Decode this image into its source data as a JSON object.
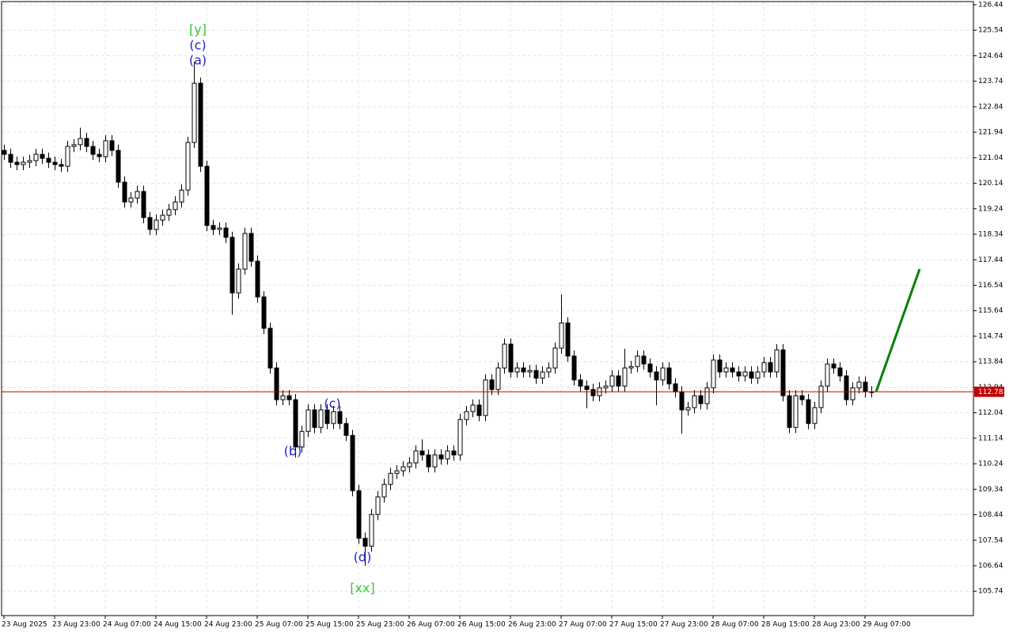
{
  "chart_data": {
    "type": "candlestick",
    "ylim": [
      104.88,
      126.44
    ],
    "yticks": [
      126.44,
      125.54,
      124.64,
      123.74,
      122.84,
      121.94,
      121.04,
      120.14,
      119.24,
      118.34,
      117.44,
      116.54,
      115.64,
      114.74,
      113.84,
      112.94,
      112.04,
      111.14,
      110.24,
      109.34,
      108.44,
      107.54,
      106.64,
      105.74
    ],
    "grid": true,
    "x_labels": [
      "23 Aug 2025",
      "23 Aug 23:00",
      "24 Aug 07:00",
      "24 Aug 15:00",
      "24 Aug 23:00",
      "25 Aug 07:00",
      "25 Aug 15:00",
      "25 Aug 23:00",
      "26 Aug 07:00",
      "26 Aug 15:00",
      "26 Aug 23:00",
      "27 Aug 07:00",
      "27 Aug 15:00",
      "27 Aug 23:00",
      "28 Aug 07:00",
      "28 Aug 15:00",
      "28 Aug 23:00",
      "29 Aug 07:00"
    ],
    "up_color": "#ffffff",
    "down_color": "#000000",
    "open": [
      121.3,
      121.16,
      120.88,
      120.8,
      120.88,
      120.94,
      121.16,
      121.02,
      120.88,
      120.8,
      120.74,
      121.44,
      121.5,
      121.72,
      121.44,
      121.16,
      121.08,
      121.64,
      121.3,
      120.18,
      119.48,
      119.62,
      119.85,
      118.93,
      118.51,
      118.84,
      119.01,
      119.21,
      119.48,
      119.9,
      121.58,
      123.67,
      120.74,
      118.65,
      118.51,
      118.56,
      118.23,
      116.27,
      117.11,
      118.37,
      117.39,
      116.13,
      115.02,
      113.62,
      112.5,
      112.64,
      112.5,
      110.83,
      111.38,
      112.14,
      111.52,
      112.14,
      111.66,
      112.08,
      111.66,
      111.24,
      109.29,
      107.61,
      107.33,
      108.45,
      109.07,
      109.51,
      109.9,
      109.99,
      110.13,
      110.27,
      110.69,
      110.55,
      110.13,
      110.55,
      110.41,
      110.69,
      110.55,
      111.8,
      112.08,
      112.31,
      111.94,
      113.2,
      112.86,
      113.62,
      114.46,
      113.48,
      113.62,
      113.48,
      113.53,
      113.26,
      113.48,
      113.62,
      114.32,
      115.21,
      114.04,
      113.2,
      112.98,
      112.86,
      112.64,
      112.92,
      112.98,
      113.34,
      112.98,
      113.62,
      113.67,
      114.04,
      113.76,
      113.48,
      113.2,
      113.62,
      113.06,
      112.78,
      112.14,
      112.22,
      112.64,
      112.36,
      112.92,
      113.9,
      113.48,
      113.62,
      113.48,
      113.34,
      113.48,
      113.26,
      113.48,
      113.81,
      113.48,
      114.26,
      112.64,
      111.52,
      112.64,
      112.5,
      111.66,
      112.22,
      112.98,
      113.76,
      113.62,
      113.34,
      112.5,
      112.92,
      113.12,
      112.78
    ],
    "high": [
      121.5,
      121.36,
      121.08,
      121.08,
      121.14,
      121.36,
      121.36,
      121.22,
      121.08,
      121.0,
      121.64,
      121.7,
      122.1,
      121.92,
      121.64,
      121.36,
      121.84,
      121.84,
      121.5,
      120.38,
      119.82,
      120.05,
      120.05,
      119.13,
      119.04,
      119.21,
      119.41,
      119.68,
      120.1,
      121.78,
      124.43,
      123.87,
      120.94,
      118.85,
      118.76,
      118.76,
      118.43,
      117.31,
      118.57,
      118.57,
      117.59,
      116.33,
      115.22,
      113.82,
      112.84,
      112.84,
      112.7,
      111.58,
      112.34,
      112.34,
      112.34,
      112.34,
      112.28,
      112.28,
      111.86,
      111.44,
      109.49,
      107.81,
      108.65,
      109.27,
      109.71,
      110.1,
      110.19,
      110.33,
      110.47,
      110.89,
      111.1,
      110.75,
      110.75,
      110.75,
      110.89,
      110.89,
      112.0,
      112.28,
      112.51,
      112.51,
      113.4,
      113.4,
      113.82,
      114.66,
      114.66,
      113.82,
      113.82,
      113.73,
      113.73,
      113.68,
      113.82,
      114.52,
      116.22,
      115.41,
      114.24,
      113.4,
      113.18,
      113.06,
      113.12,
      113.18,
      113.54,
      113.54,
      114.3,
      113.87,
      114.24,
      114.24,
      113.96,
      113.68,
      113.82,
      113.82,
      113.26,
      112.98,
      112.42,
      112.84,
      112.84,
      113.12,
      114.1,
      114.1,
      113.82,
      113.82,
      113.68,
      113.68,
      113.68,
      113.68,
      114.01,
      114.01,
      114.46,
      114.46,
      112.84,
      112.84,
      112.84,
      112.7,
      112.42,
      113.18,
      113.96,
      113.96,
      113.82,
      113.54,
      113.12,
      113.32,
      113.32,
      112.98
    ],
    "low": [
      120.96,
      120.68,
      120.6,
      120.6,
      120.68,
      120.74,
      120.82,
      120.68,
      120.6,
      120.54,
      120.54,
      121.24,
      121.3,
      121.24,
      120.96,
      120.88,
      120.88,
      121.1,
      119.98,
      119.28,
      119.28,
      119.42,
      118.73,
      118.31,
      118.31,
      118.64,
      118.81,
      119.01,
      119.28,
      119.7,
      121.38,
      120.54,
      118.45,
      118.31,
      118.31,
      118.03,
      115.5,
      116.07,
      116.91,
      117.19,
      115.93,
      114.82,
      113.42,
      112.3,
      112.3,
      112.3,
      110.46,
      110.63,
      111.18,
      111.32,
      111.32,
      111.46,
      111.46,
      111.46,
      111.04,
      109.09,
      107.41,
      106.64,
      107.13,
      108.25,
      108.87,
      109.31,
      109.7,
      109.79,
      109.93,
      110.07,
      110.35,
      109.93,
      109.93,
      110.21,
      110.21,
      110.35,
      110.35,
      111.6,
      111.88,
      111.74,
      111.74,
      112.66,
      112.66,
      113.42,
      113.28,
      113.28,
      113.28,
      113.28,
      113.06,
      113.06,
      113.28,
      113.42,
      114.12,
      113.84,
      113.0,
      112.78,
      112.2,
      112.44,
      112.44,
      112.72,
      112.78,
      112.78,
      112.78,
      113.42,
      113.47,
      113.56,
      113.28,
      112.3,
      113.0,
      112.86,
      112.58,
      111.3,
      111.94,
      112.02,
      112.16,
      112.16,
      112.72,
      113.28,
      113.28,
      113.28,
      113.14,
      113.14,
      113.06,
      113.06,
      113.28,
      113.28,
      113.28,
      112.44,
      111.32,
      111.32,
      112.3,
      111.46,
      111.46,
      112.02,
      112.78,
      113.42,
      113.14,
      112.3,
      112.3,
      112.72,
      112.58,
      112.58
    ],
    "close": [
      121.16,
      120.88,
      120.8,
      120.88,
      120.94,
      121.16,
      121.02,
      120.88,
      120.8,
      120.74,
      121.44,
      121.5,
      121.72,
      121.44,
      121.16,
      121.08,
      121.64,
      121.3,
      120.18,
      119.48,
      119.62,
      119.85,
      118.93,
      118.51,
      118.84,
      119.01,
      119.21,
      119.48,
      119.9,
      121.58,
      123.67,
      120.74,
      118.65,
      118.51,
      118.56,
      118.23,
      116.27,
      117.11,
      118.37,
      117.39,
      116.13,
      115.02,
      113.62,
      112.5,
      112.64,
      112.5,
      110.83,
      111.38,
      112.14,
      111.52,
      112.14,
      111.66,
      112.08,
      111.66,
      111.24,
      109.29,
      107.61,
      107.33,
      108.45,
      109.07,
      109.51,
      109.9,
      109.99,
      110.13,
      110.27,
      110.69,
      110.55,
      110.13,
      110.55,
      110.41,
      110.69,
      110.55,
      111.8,
      112.08,
      112.31,
      111.94,
      113.2,
      112.86,
      113.62,
      114.46,
      113.48,
      113.62,
      113.48,
      113.53,
      113.26,
      113.48,
      113.62,
      114.32,
      115.21,
      114.04,
      113.2,
      112.98,
      112.86,
      112.64,
      112.92,
      112.98,
      113.34,
      112.98,
      113.62,
      113.67,
      114.04,
      113.76,
      113.48,
      113.2,
      113.62,
      113.06,
      112.78,
      112.14,
      112.22,
      112.64,
      112.36,
      112.92,
      113.9,
      113.48,
      113.62,
      113.48,
      113.34,
      113.48,
      113.26,
      113.48,
      113.81,
      113.48,
      114.26,
      112.64,
      111.52,
      112.64,
      112.5,
      111.66,
      112.22,
      112.98,
      113.76,
      113.62,
      113.34,
      112.5,
      112.92,
      113.12,
      112.78,
      112.78
    ],
    "current_price": 112.78,
    "current_price_color": "#c00000",
    "forecast": {
      "color": "#008000",
      "target": 117.11
    },
    "annotations": [
      {
        "text": "[y]",
        "color": "#33cc33"
      },
      {
        "text": "(c)",
        "color": "#2222cc"
      },
      {
        "text": "(a)",
        "color": "#2222cc"
      },
      {
        "text": "(b)",
        "color": "#2222cc"
      },
      {
        "text": "(c)",
        "color": "#2222cc"
      },
      {
        "text": "(d)",
        "color": "#2222cc"
      },
      {
        "text": "[xx]",
        "color": "#33cc33"
      }
    ]
  }
}
